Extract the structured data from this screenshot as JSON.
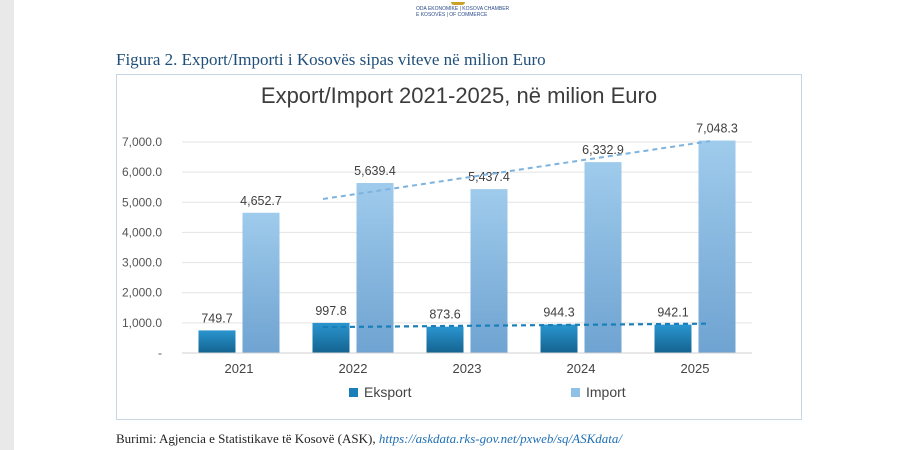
{
  "header": {
    "logo_line1": "ODA EKONOMIKE | KOSOVA CHAMBER",
    "logo_line2": "E KOSOVËS | OF COMMERCE"
  },
  "figure_title": "Figura 2. Export/Importi  i Kosovës sipas viteve në milion Euro",
  "source": {
    "label": "Burimi: Agjencia e Statistikave të Kosovë (ASK), ",
    "link": "https://askdata.rks-gov.net/pxweb/sq/ASKdata/"
  },
  "chart_data": {
    "type": "bar",
    "title": "Export/Import 2021-2025, në milion Euro",
    "xlabel": "",
    "ylabel": "",
    "categories": [
      "2021",
      "2022",
      "2023",
      "2024",
      "2025"
    ],
    "ylim": [
      0,
      7000
    ],
    "yticks": [
      0,
      1000,
      2000,
      3000,
      4000,
      5000,
      6000,
      7000
    ],
    "ytick_labels": [
      "-",
      "1,000.0",
      "2,000.0",
      "3,000.0",
      "4,000.0",
      "5,000.0",
      "6,000.0",
      "7,000.0"
    ],
    "series": [
      {
        "name": "Eksport",
        "values": [
          749.7,
          997.8,
          873.6,
          944.3,
          942.1
        ],
        "labels": [
          "749.7",
          "997.8",
          "873.6",
          "944.3",
          "942.1"
        ],
        "color": "#1a7fb8"
      },
      {
        "name": "Import",
        "values": [
          4652.7,
          5639.4,
          5437.4,
          6332.9,
          7048.3
        ],
        "labels": [
          "4,652.7",
          "5,639.4",
          "5,437.4",
          "6,332.9",
          "7,048.3"
        ],
        "color": "#8fc1e6"
      }
    ],
    "trendlines": [
      {
        "series": "Eksport",
        "style": "dashed",
        "color": "#1a7fb8"
      },
      {
        "series": "Import",
        "style": "dashed",
        "color": "#6fa8d8"
      }
    ],
    "grid": true,
    "legend": "bottom"
  }
}
